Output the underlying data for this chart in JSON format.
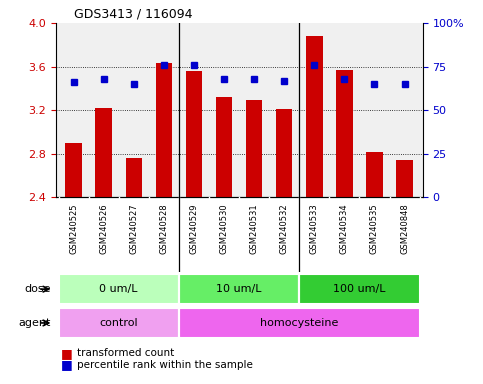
{
  "title": "GDS3413 / 116094",
  "samples": [
    "GSM240525",
    "GSM240526",
    "GSM240527",
    "GSM240528",
    "GSM240529",
    "GSM240530",
    "GSM240531",
    "GSM240532",
    "GSM240533",
    "GSM240534",
    "GSM240535",
    "GSM240848"
  ],
  "transformed_count": [
    2.9,
    3.22,
    2.76,
    3.63,
    3.56,
    3.32,
    3.29,
    3.21,
    3.88,
    3.57,
    2.82,
    2.74
  ],
  "percentile_rank": [
    66,
    68,
    65,
    76,
    76,
    68,
    68,
    67,
    76,
    68,
    65,
    65
  ],
  "ylim_left": [
    2.4,
    4.0
  ],
  "ylim_right": [
    0,
    100
  ],
  "yticks_left": [
    2.4,
    2.8,
    3.2,
    3.6,
    4.0
  ],
  "yticks_right": [
    0,
    25,
    50,
    75,
    100
  ],
  "bar_color": "#cc0000",
  "dot_color": "#0000cc",
  "dose_groups": [
    {
      "label": "0 um/L",
      "start": 0,
      "end": 4,
      "color": "#bbffbb"
    },
    {
      "label": "10 um/L",
      "start": 4,
      "end": 8,
      "color": "#66ee66"
    },
    {
      "label": "100 um/L",
      "start": 8,
      "end": 12,
      "color": "#33cc33"
    }
  ],
  "agent_groups": [
    {
      "label": "control",
      "start": 0,
      "end": 4,
      "color": "#f0a0f0"
    },
    {
      "label": "homocysteine",
      "start": 4,
      "end": 12,
      "color": "#ee66ee"
    }
  ],
  "dose_label": "dose",
  "agent_label": "agent",
  "legend_bar_label": "transformed count",
  "legend_dot_label": "percentile rank within the sample",
  "axis_color_left": "#cc0000",
  "axis_color_right": "#0000cc",
  "bg_plot": "#f0f0f0",
  "bg_xtick": "#d0d0d0",
  "gridline_color": "#000000",
  "separator_color": "#000000"
}
